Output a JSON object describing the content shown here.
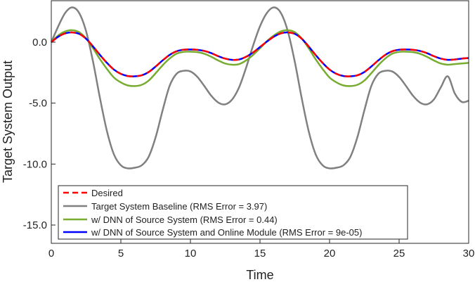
{
  "chart_data": {
    "type": "line",
    "title": "",
    "xlabel": "Time",
    "ylabel": "Target System Output",
    "xlim": [
      0,
      30
    ],
    "ylim": [
      -16.5,
      3.4
    ],
    "xticks": [
      0,
      5,
      10,
      15,
      20,
      25,
      30
    ],
    "xtick_labels": [
      "0",
      "5",
      "10",
      "15",
      "20",
      "25",
      "30"
    ],
    "yticks": [
      0,
      -5,
      -10,
      -15
    ],
    "ytick_labels": [
      "0.0",
      "-5.0",
      "-10.0",
      "-15.0"
    ],
    "grid": false,
    "legend_position": "bottom-left",
    "colors": {
      "desired": "#ff0000",
      "baseline": "#808080",
      "dnn": "#77ac30",
      "dnn_online": "#0000ff"
    },
    "series": [
      {
        "name": "Desired",
        "color_key": "desired",
        "style": "dashed",
        "x": [
          0,
          0.5,
          1,
          1.5,
          2,
          2.5,
          3,
          3.5,
          4,
          4.5,
          5,
          5.5,
          6,
          6.5,
          7,
          7.5,
          8,
          8.5,
          9,
          9.5,
          10,
          10.5,
          11,
          11.5,
          12,
          12.5,
          13,
          13.5,
          14,
          14.5,
          15,
          15.5,
          16,
          16.5,
          17,
          17.5,
          18,
          18.5,
          19,
          19.5,
          20,
          20.5,
          21,
          21.5,
          22,
          22.5,
          23,
          23.5,
          24,
          24.5,
          25,
          25.5,
          26,
          26.5,
          27,
          27.5,
          28,
          28.5,
          29,
          29.5,
          30
        ],
        "y": [
          0.0,
          0.45,
          0.72,
          0.8,
          0.68,
          0.28,
          -0.35,
          -1.05,
          -1.7,
          -2.25,
          -2.6,
          -2.78,
          -2.8,
          -2.72,
          -2.45,
          -2.0,
          -1.5,
          -1.05,
          -0.75,
          -0.62,
          -0.6,
          -0.63,
          -0.72,
          -0.9,
          -1.15,
          -1.35,
          -1.45,
          -1.42,
          -1.2,
          -0.85,
          -0.4,
          0.05,
          0.45,
          0.72,
          0.8,
          0.68,
          0.28,
          -0.35,
          -1.05,
          -1.7,
          -2.25,
          -2.6,
          -2.78,
          -2.8,
          -2.72,
          -2.45,
          -2.0,
          -1.5,
          -1.05,
          -0.75,
          -0.62,
          -0.6,
          -0.63,
          -0.72,
          -0.9,
          -1.15,
          -1.35,
          -1.45,
          -1.42,
          -1.35,
          -1.3
        ]
      },
      {
        "name": "Target System Baseline (RMS Error = 3.97)",
        "color_key": "baseline",
        "style": "solid",
        "x": [
          0,
          0.5,
          1,
          1.5,
          2,
          2.5,
          3,
          3.5,
          4,
          4.5,
          5,
          5.5,
          6,
          6.5,
          7,
          7.5,
          8,
          8.5,
          9,
          9.5,
          10,
          10.5,
          11,
          11.5,
          12,
          12.5,
          13,
          13.5,
          14,
          14.5,
          15,
          15.5,
          16,
          16.5,
          17,
          17.5,
          18,
          18.5,
          19,
          19.5,
          20,
          20.5,
          21,
          21.5,
          22,
          22.5,
          23,
          23.5,
          24,
          24.5,
          25,
          25.5,
          26,
          26.5,
          27,
          27.5,
          28,
          28.5,
          29,
          29.5,
          30
        ],
        "y": [
          0.0,
          1.3,
          2.4,
          2.85,
          2.4,
          0.9,
          -1.6,
          -4.6,
          -7.3,
          -9.2,
          -10.1,
          -10.35,
          -10.3,
          -10.1,
          -9.4,
          -7.8,
          -5.6,
          -3.6,
          -2.6,
          -2.35,
          -2.4,
          -2.85,
          -3.6,
          -4.4,
          -4.95,
          -5.1,
          -4.7,
          -3.7,
          -2.1,
          -0.3,
          1.3,
          2.4,
          2.85,
          2.4,
          0.9,
          -1.6,
          -4.6,
          -7.3,
          -9.2,
          -10.1,
          -10.35,
          -10.3,
          -10.1,
          -9.4,
          -7.8,
          -5.6,
          -3.6,
          -2.6,
          -2.35,
          -2.4,
          -2.85,
          -3.6,
          -4.4,
          -4.95,
          -5.1,
          -4.7,
          -3.7,
          -2.8,
          -4.2,
          -4.9,
          -4.8
        ]
      },
      {
        "name": "w/ DNN of Source System (RMS Error = 0.44)",
        "color_key": "dnn",
        "style": "solid",
        "x": [
          0,
          0.5,
          1,
          1.5,
          2,
          2.5,
          3,
          3.5,
          4,
          4.5,
          5,
          5.5,
          6,
          6.5,
          7,
          7.5,
          8,
          8.5,
          9,
          9.5,
          10,
          10.5,
          11,
          11.5,
          12,
          12.5,
          13,
          13.5,
          14,
          14.5,
          15,
          15.5,
          16,
          16.5,
          17,
          17.5,
          18,
          18.5,
          19,
          19.5,
          20,
          20.5,
          21,
          21.5,
          22,
          22.5,
          23,
          23.5,
          24,
          24.5,
          25,
          25.5,
          26,
          26.5,
          27,
          27.5,
          28,
          28.5,
          29,
          29.5,
          30
        ],
        "y": [
          0.0,
          0.55,
          0.88,
          0.98,
          0.82,
          0.3,
          -0.5,
          -1.4,
          -2.2,
          -2.9,
          -3.3,
          -3.55,
          -3.6,
          -3.5,
          -3.15,
          -2.55,
          -1.9,
          -1.35,
          -0.95,
          -0.8,
          -0.78,
          -0.82,
          -0.95,
          -1.2,
          -1.5,
          -1.75,
          -1.85,
          -1.8,
          -1.5,
          -1.05,
          -0.5,
          0.08,
          0.55,
          0.88,
          0.98,
          0.82,
          0.3,
          -0.5,
          -1.4,
          -2.2,
          -2.9,
          -3.3,
          -3.55,
          -3.6,
          -3.5,
          -3.15,
          -2.55,
          -1.9,
          -1.35,
          -0.95,
          -0.8,
          -0.78,
          -0.82,
          -0.95,
          -1.2,
          -1.5,
          -1.75,
          -1.85,
          -1.8,
          -1.75,
          -1.7
        ]
      },
      {
        "name": "w/ DNN of Source System and Online Module (RMS Error = 9e-05)",
        "color_key": "dnn_online",
        "style": "solid",
        "x": [
          0,
          0.5,
          1,
          1.5,
          2,
          2.5,
          3,
          3.5,
          4,
          4.5,
          5,
          5.5,
          6,
          6.5,
          7,
          7.5,
          8,
          8.5,
          9,
          9.5,
          10,
          10.5,
          11,
          11.5,
          12,
          12.5,
          13,
          13.5,
          14,
          14.5,
          15,
          15.5,
          16,
          16.5,
          17,
          17.5,
          18,
          18.5,
          19,
          19.5,
          20,
          20.5,
          21,
          21.5,
          22,
          22.5,
          23,
          23.5,
          24,
          24.5,
          25,
          25.5,
          26,
          26.5,
          27,
          27.5,
          28,
          28.5,
          29,
          29.5,
          30
        ],
        "y": [
          0.0,
          0.45,
          0.72,
          0.8,
          0.68,
          0.28,
          -0.35,
          -1.05,
          -1.7,
          -2.25,
          -2.6,
          -2.78,
          -2.8,
          -2.72,
          -2.45,
          -2.0,
          -1.5,
          -1.05,
          -0.75,
          -0.62,
          -0.6,
          -0.63,
          -0.72,
          -0.9,
          -1.15,
          -1.35,
          -1.45,
          -1.42,
          -1.2,
          -0.85,
          -0.4,
          0.05,
          0.45,
          0.72,
          0.8,
          0.68,
          0.28,
          -0.35,
          -1.05,
          -1.7,
          -2.25,
          -2.6,
          -2.78,
          -2.8,
          -2.72,
          -2.45,
          -2.0,
          -1.5,
          -1.05,
          -0.75,
          -0.62,
          -0.6,
          -0.63,
          -0.72,
          -0.9,
          -1.15,
          -1.35,
          -1.45,
          -1.42,
          -1.35,
          -1.3
        ]
      }
    ]
  }
}
